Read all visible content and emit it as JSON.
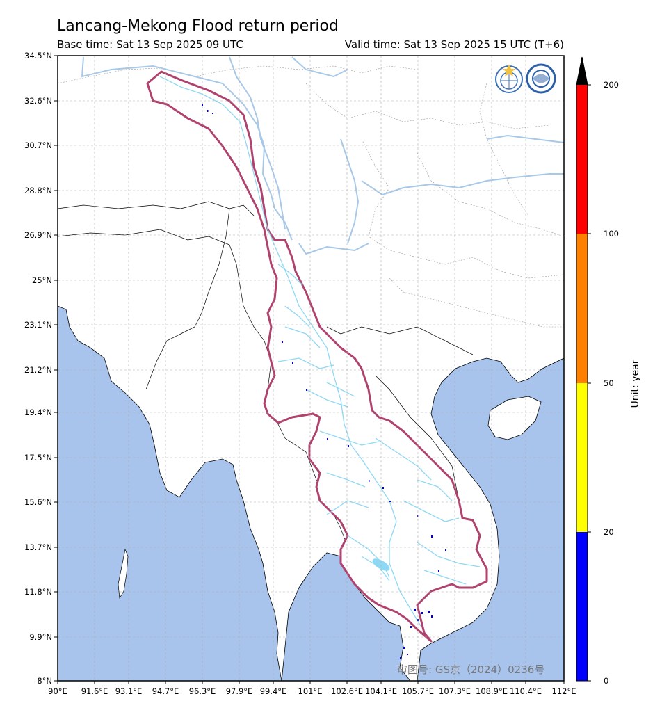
{
  "title": "Lancang-Mekong Flood return period",
  "base_time": "Base time: Sat 13 Sep 2025 09 UTC",
  "valid_time": "Valid time: Sat 13 Sep 2025 15 UTC (T+6)",
  "lat_labels": [
    "34.5°N",
    "32.6°N",
    "30.7°N",
    "28.8°N",
    "26.9°N",
    "25°N",
    "23.1°N",
    "21.2°N",
    "19.4°N",
    "17.5°N",
    "15.6°N",
    "13.7°N",
    "11.8°N",
    "9.9°N",
    "8°N"
  ],
  "lon_labels": [
    "90°E",
    "91.6°E",
    "93.1°E",
    "94.7°E",
    "96.3°E",
    "97.9°E",
    "99.4°E",
    "101°E",
    "102.6°E",
    "104.1°E",
    "105.7°E",
    "107.3°E",
    "108.9°E",
    "110.4°E",
    "112°E"
  ],
  "colorbar": {
    "unit_label": "Unit: year",
    "ticks": [
      "0",
      "20",
      "50",
      "100",
      "200"
    ],
    "colors": [
      "#0000ff",
      "#ffff00",
      "#ff8000",
      "#ff0000",
      "#000000"
    ]
  },
  "watermark": "审图号: GS京（2024）0236号",
  "logos": [
    "wmo-logo",
    "cma-logo"
  ],
  "colors": {
    "sea": "#a8c4ec",
    "land": "#ffffff",
    "basin_outline": "#b0426e",
    "river_main": "#a8c8e8",
    "river_minor": "#8fd8f4",
    "flood_marks": "#0000cc"
  }
}
